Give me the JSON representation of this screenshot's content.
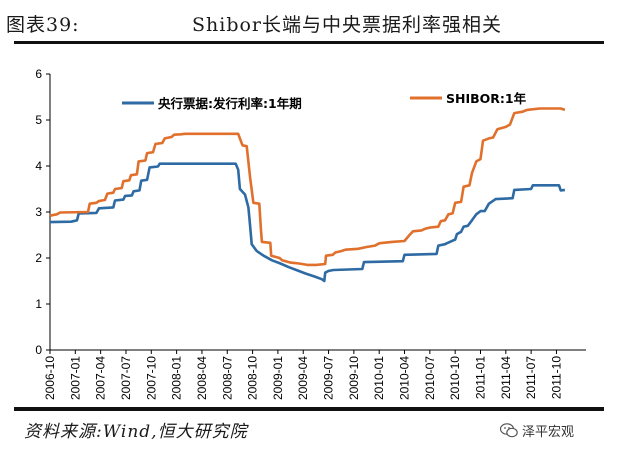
{
  "title": {
    "label": "图表39:",
    "text": "Shibor长端与中央票据利率强相关"
  },
  "source": "资料来源:Wind,恒大研究院",
  "watermark": {
    "text": "泽平宏观",
    "icon": "wechat-icon"
  },
  "colors": {
    "series_pbc": "#2e6aa3",
    "series_shibor": "#e0702c",
    "axis": "#000000"
  },
  "chart_data": {
    "type": "line",
    "ylim": [
      0,
      6
    ],
    "yticks": [
      "0",
      "1",
      "2",
      "3",
      "4",
      "5",
      "6"
    ],
    "xticks": [
      "2006-10",
      "2007-01",
      "2007-04",
      "2007-07",
      "2007-10",
      "2008-01",
      "2008-04",
      "2008-07",
      "2008-10",
      "2009-01",
      "2009-04",
      "2009-07",
      "2009-10",
      "2010-01",
      "2010-04",
      "2010-07",
      "2010-10",
      "2011-01",
      "2011-04",
      "2011-07",
      "2011-10"
    ],
    "xlim_months": [
      0,
      63.5
    ],
    "legend_position": "top",
    "grid": false,
    "series": [
      {
        "name": "央行票据:发行利率:1年期",
        "color": "#2e6aa3",
        "points": [
          [
            0,
            2.78
          ],
          [
            2.5,
            2.79
          ],
          [
            3.2,
            2.82
          ],
          [
            3.4,
            2.97
          ],
          [
            5.5,
            2.98
          ],
          [
            5.8,
            3.08
          ],
          [
            7.5,
            3.1
          ],
          [
            7.7,
            3.25
          ],
          [
            8.7,
            3.27
          ],
          [
            8.9,
            3.35
          ],
          [
            9.7,
            3.36
          ],
          [
            9.9,
            3.45
          ],
          [
            10.6,
            3.47
          ],
          [
            10.8,
            3.68
          ],
          [
            11.5,
            3.7
          ],
          [
            11.8,
            3.97
          ],
          [
            12.8,
            3.99
          ],
          [
            13.0,
            4.05
          ],
          [
            22,
            4.05
          ],
          [
            22.3,
            3.92
          ],
          [
            22.5,
            3.5
          ],
          [
            23.1,
            3.38
          ],
          [
            23.5,
            3.1
          ],
          [
            23.7,
            2.7
          ],
          [
            23.9,
            2.3
          ],
          [
            24.5,
            2.15
          ],
          [
            25.3,
            2.05
          ],
          [
            26.3,
            1.95
          ],
          [
            27.3,
            1.88
          ],
          [
            28.3,
            1.8
          ],
          [
            29.3,
            1.73
          ],
          [
            30.3,
            1.66
          ],
          [
            31.3,
            1.6
          ],
          [
            32.2,
            1.54
          ],
          [
            32.5,
            1.5
          ],
          [
            32.6,
            1.68
          ],
          [
            33.0,
            1.72
          ],
          [
            33.6,
            1.74
          ],
          [
            37,
            1.76
          ],
          [
            37.2,
            1.91
          ],
          [
            41.8,
            1.93
          ],
          [
            42.0,
            2.07
          ],
          [
            45.8,
            2.09
          ],
          [
            46.0,
            2.27
          ],
          [
            46.8,
            2.3
          ],
          [
            47.0,
            2.32
          ],
          [
            48.0,
            2.4
          ],
          [
            48.2,
            2.52
          ],
          [
            48.7,
            2.57
          ],
          [
            49.0,
            2.68
          ],
          [
            49.5,
            2.7
          ],
          [
            50.0,
            2.82
          ],
          [
            50.5,
            2.95
          ],
          [
            51.0,
            3.02
          ],
          [
            51.5,
            3.02
          ],
          [
            52.0,
            3.18
          ],
          [
            52.8,
            3.28
          ],
          [
            54.8,
            3.3
          ],
          [
            55.0,
            3.48
          ],
          [
            57.0,
            3.5
          ],
          [
            57.2,
            3.58
          ],
          [
            60.3,
            3.58
          ],
          [
            60.5,
            3.47
          ],
          [
            61.0,
            3.48
          ]
        ]
      },
      {
        "name": "SHIBOR:1年",
        "color": "#e0702c",
        "points": [
          [
            0,
            2.92
          ],
          [
            0.8,
            2.95
          ],
          [
            1.2,
            2.99
          ],
          [
            4.5,
            3.0
          ],
          [
            4.7,
            3.18
          ],
          [
            5.5,
            3.2
          ],
          [
            5.8,
            3.24
          ],
          [
            6.5,
            3.26
          ],
          [
            6.8,
            3.4
          ],
          [
            7.5,
            3.42
          ],
          [
            7.7,
            3.5
          ],
          [
            8.5,
            3.52
          ],
          [
            8.7,
            3.67
          ],
          [
            9.4,
            3.69
          ],
          [
            9.6,
            3.8
          ],
          [
            10.3,
            3.82
          ],
          [
            10.5,
            4.1
          ],
          [
            11.3,
            4.12
          ],
          [
            11.5,
            4.28
          ],
          [
            12.2,
            4.3
          ],
          [
            12.5,
            4.48
          ],
          [
            13.3,
            4.5
          ],
          [
            13.6,
            4.6
          ],
          [
            14.4,
            4.63
          ],
          [
            14.7,
            4.68
          ],
          [
            15.5,
            4.69
          ],
          [
            16,
            4.7
          ],
          [
            22.3,
            4.7
          ],
          [
            22.5,
            4.6
          ],
          [
            22.8,
            4.45
          ],
          [
            23.3,
            4.43
          ],
          [
            23.7,
            3.75
          ],
          [
            24.1,
            3.2
          ],
          [
            24.8,
            3.18
          ],
          [
            25.0,
            2.6
          ],
          [
            25.1,
            2.35
          ],
          [
            26.1,
            2.33
          ],
          [
            26.2,
            2.05
          ],
          [
            27.2,
            2.0
          ],
          [
            27.5,
            1.95
          ],
          [
            28.5,
            1.9
          ],
          [
            29.5,
            1.88
          ],
          [
            30.5,
            1.85
          ],
          [
            31.5,
            1.85
          ],
          [
            32.6,
            1.87
          ],
          [
            32.7,
            2.05
          ],
          [
            33.5,
            2.07
          ],
          [
            33.8,
            2.12
          ],
          [
            34.5,
            2.15
          ],
          [
            35.0,
            2.18
          ],
          [
            36.5,
            2.2
          ],
          [
            37.5,
            2.24
          ],
          [
            38.5,
            2.27
          ],
          [
            39.0,
            2.32
          ],
          [
            40.5,
            2.35
          ],
          [
            42.0,
            2.37
          ],
          [
            42.5,
            2.48
          ],
          [
            43.0,
            2.58
          ],
          [
            44.0,
            2.6
          ],
          [
            44.5,
            2.64
          ],
          [
            45.0,
            2.66
          ],
          [
            46.0,
            2.68
          ],
          [
            46.3,
            2.8
          ],
          [
            46.8,
            2.82
          ],
          [
            47.2,
            2.95
          ],
          [
            47.7,
            2.97
          ],
          [
            48.0,
            3.2
          ],
          [
            48.7,
            3.22
          ],
          [
            49.0,
            3.55
          ],
          [
            49.7,
            3.58
          ],
          [
            50.0,
            3.85
          ],
          [
            50.5,
            4.1
          ],
          [
            51.0,
            4.15
          ],
          [
            51.3,
            4.55
          ],
          [
            52.0,
            4.6
          ],
          [
            52.5,
            4.62
          ],
          [
            53.0,
            4.8
          ],
          [
            54.0,
            4.85
          ],
          [
            54.5,
            4.9
          ],
          [
            55.0,
            5.15
          ],
          [
            56.0,
            5.18
          ],
          [
            56.5,
            5.22
          ],
          [
            58.0,
            5.25
          ],
          [
            60.5,
            5.25
          ],
          [
            61.0,
            5.22
          ]
        ]
      }
    ]
  }
}
